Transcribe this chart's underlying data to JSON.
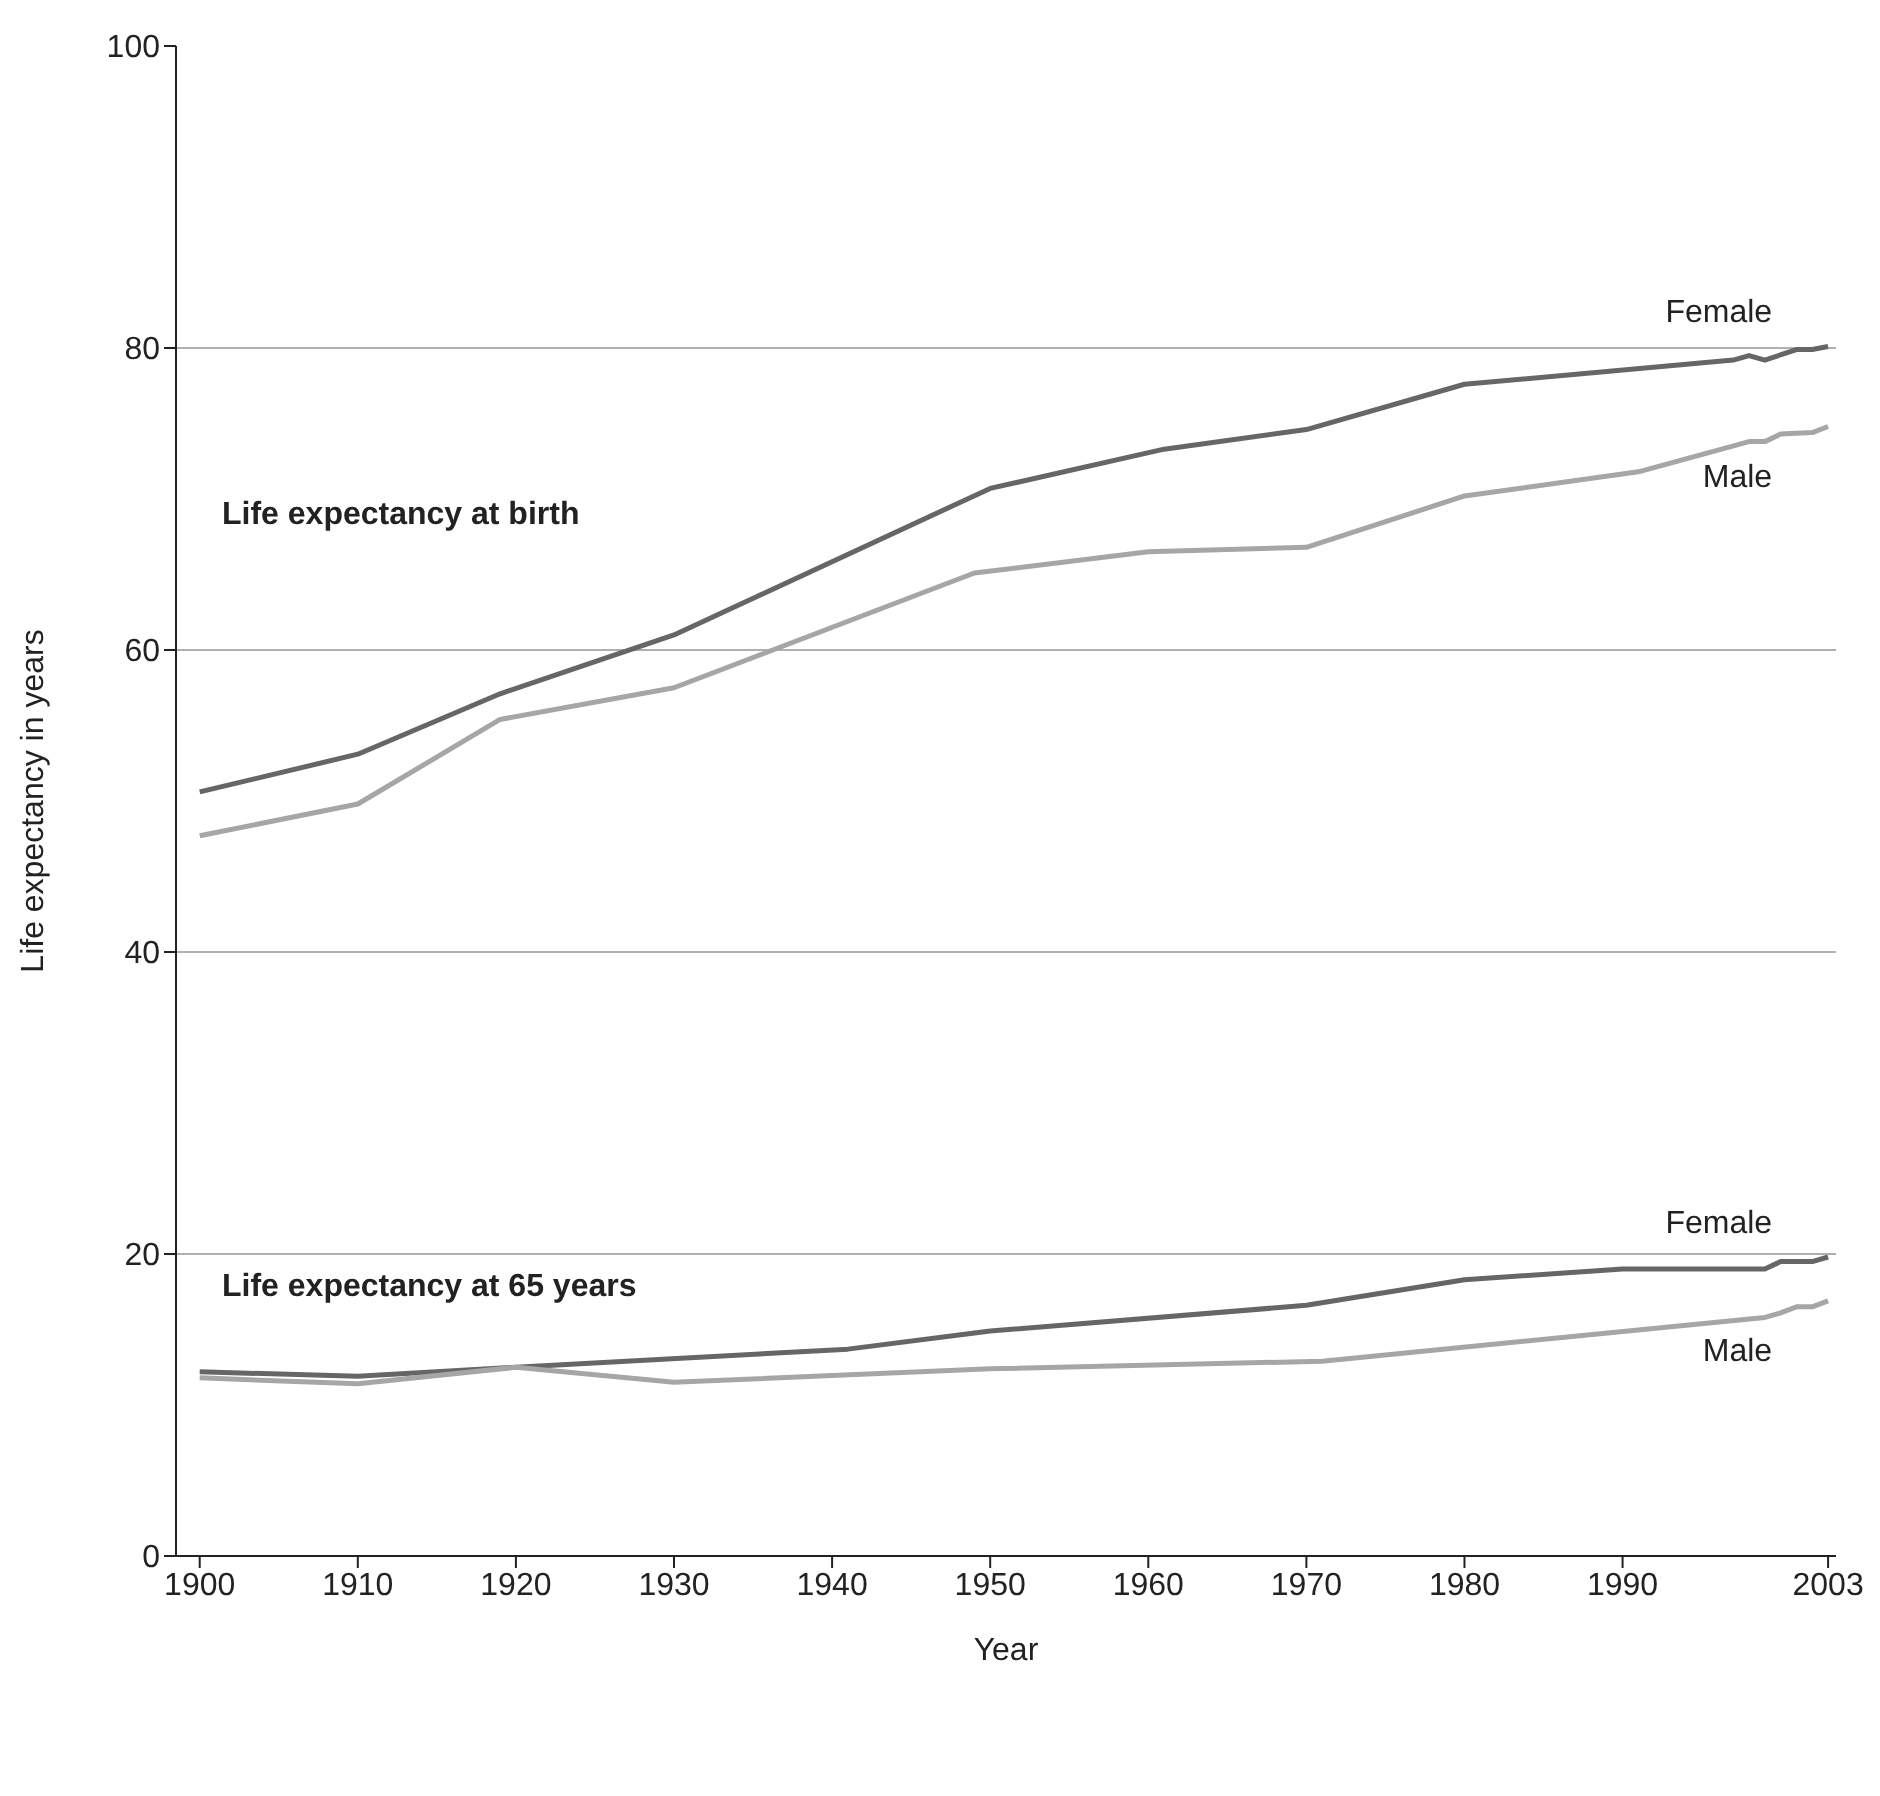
{
  "chart_data": {
    "type": "line",
    "xlabel": "Year",
    "ylabel": "Life expectancy in years",
    "annotations": [
      "Life expectancy at birth",
      "Life expectancy at 65 years"
    ],
    "xlim": [
      1898.5,
      2003.5
    ],
    "xticks": [
      1900,
      1910,
      1920,
      1930,
      1940,
      1950,
      1960,
      1970,
      1980,
      1990,
      2003
    ],
    "ylim": [
      0,
      100
    ],
    "yticks": [
      0,
      20,
      40,
      60,
      80,
      100
    ],
    "grid": "y",
    "line_style": "solid",
    "marker": "none",
    "series": [
      {
        "name": "Female",
        "color": "#666666",
        "x": [
          1900,
          1910,
          1919,
          1930,
          1950,
          1961,
          1970,
          1980,
          1997,
          1998,
          1999,
          2001,
          2002,
          2003
        ],
        "values": [
          50.6,
          53.1,
          57.1,
          61.0,
          70.7,
          73.3,
          74.6,
          77.6,
          79.2,
          79.5,
          79.2,
          79.9,
          79.9,
          80.1
        ]
      },
      {
        "name": "Male",
        "color": "#a6a6a6",
        "x": [
          1900,
          1910,
          1919,
          1930,
          1949,
          1960,
          1970,
          1980,
          1991,
          1998,
          1999,
          2000,
          2002,
          2003
        ],
        "values": [
          47.7,
          49.8,
          55.4,
          57.5,
          65.1,
          66.5,
          66.8,
          70.2,
          71.8,
          73.8,
          73.8,
          74.3,
          74.4,
          74.8
        ]
      },
      {
        "name": "Female",
        "color": "#666666",
        "x": [
          1900,
          1910,
          1920,
          1941,
          1950,
          1970,
          1980,
          1990,
          1999,
          2000,
          2002,
          2003
        ],
        "values": [
          12.2,
          11.9,
          12.5,
          13.7,
          14.9,
          16.6,
          18.3,
          19.0,
          19.0,
          19.5,
          19.5,
          19.8
        ]
      },
      {
        "name": "Male",
        "color": "#a6a6a6",
        "x": [
          1900,
          1910,
          1920,
          1930,
          1950,
          1971,
          1999,
          2000,
          2001,
          2002,
          2003
        ],
        "values": [
          11.8,
          11.4,
          12.5,
          11.5,
          12.4,
          12.9,
          15.8,
          16.1,
          16.5,
          16.5,
          16.9
        ]
      }
    ]
  }
}
